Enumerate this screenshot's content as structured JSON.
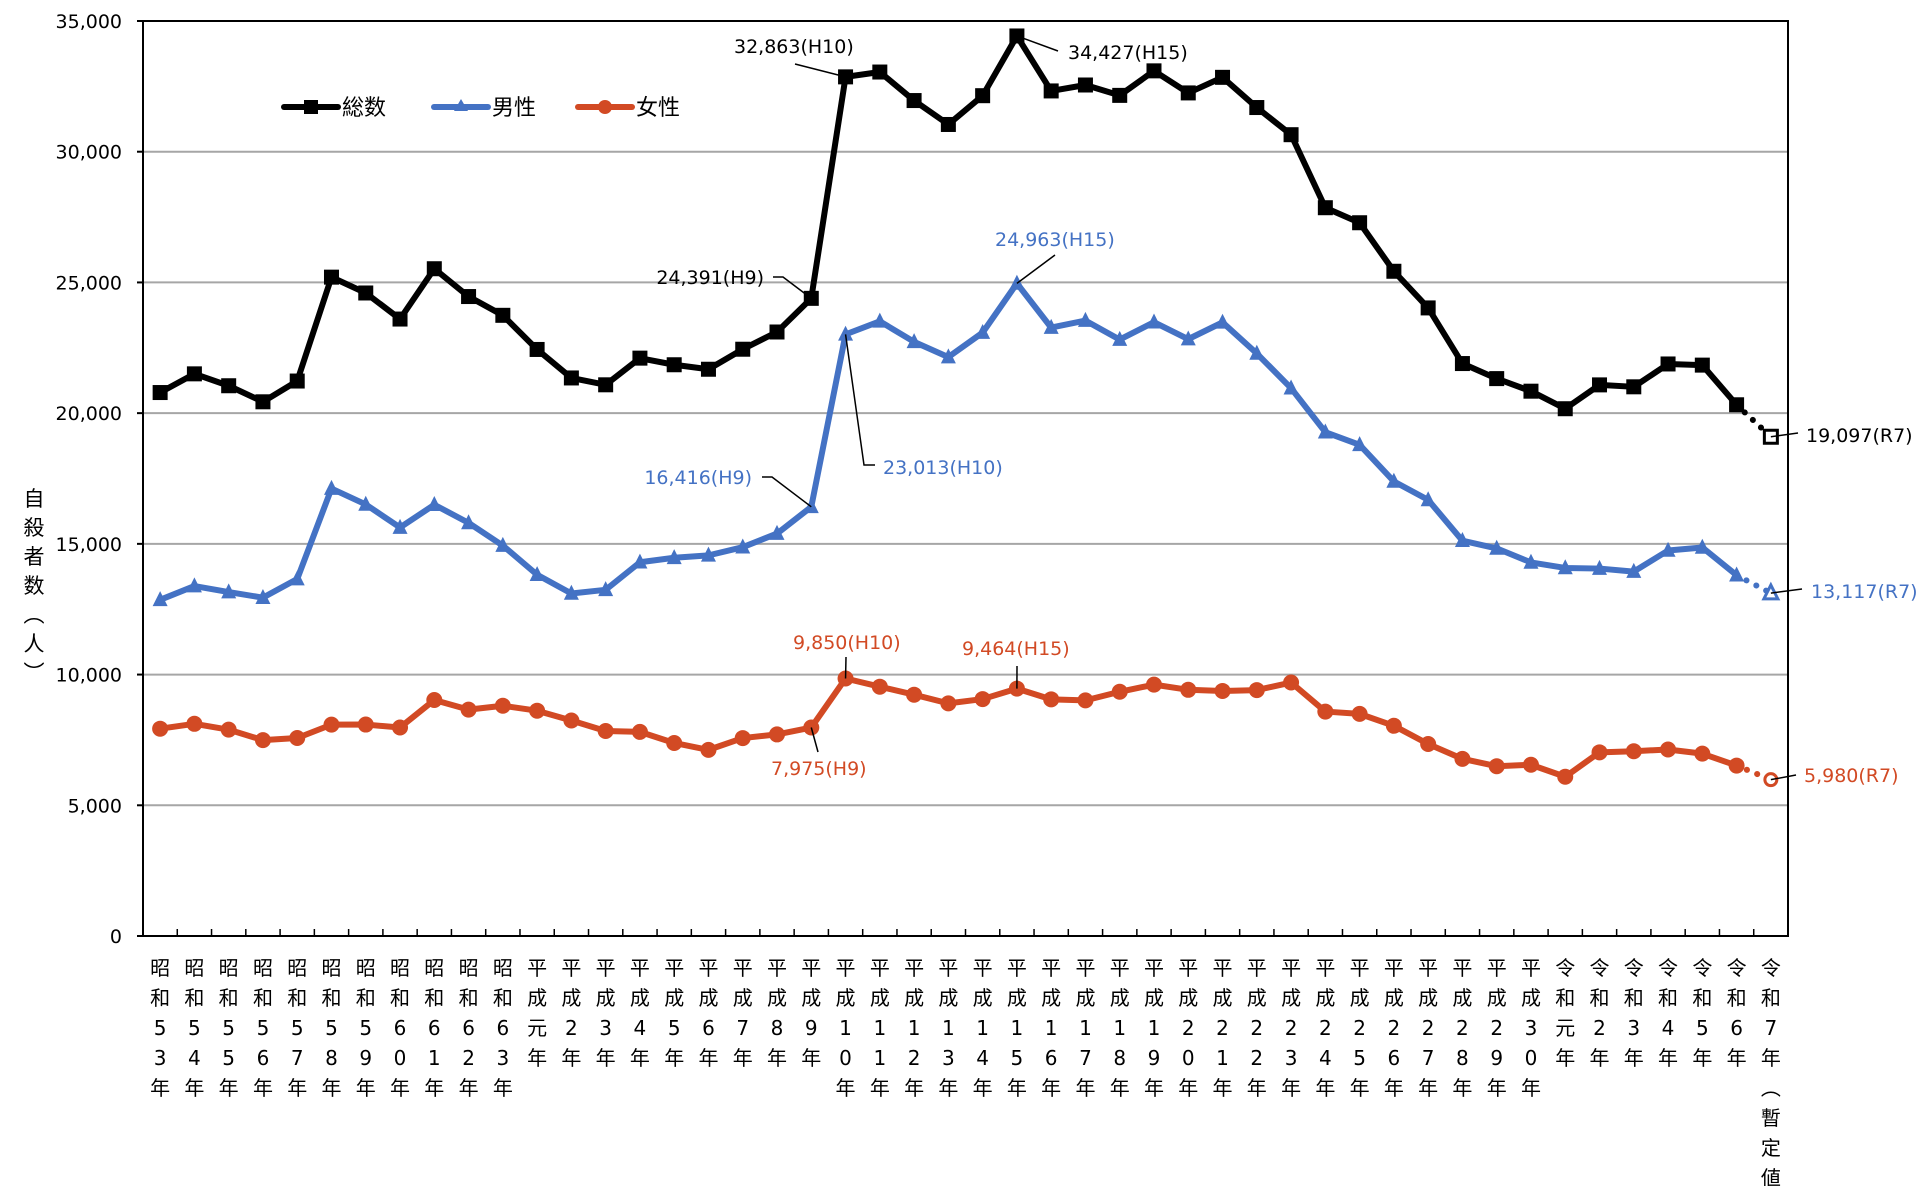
{
  "chart_data": {
    "type": "line",
    "title": "",
    "ylabel": "自殺者数（人）",
    "xlabel": "",
    "ylim": [
      0,
      35000
    ],
    "yticks": [
      0,
      5000,
      10000,
      15000,
      20000,
      25000,
      30000,
      35000
    ],
    "ytick_labels": [
      "0",
      "5,000",
      "10,000",
      "15,000",
      "20,000",
      "25,000",
      "30,000",
      "35,000"
    ],
    "grid": "horizontal",
    "legend_position": "top-left",
    "categories": [
      "昭和53年",
      "昭和54年",
      "昭和55年",
      "昭和56年",
      "昭和57年",
      "昭和58年",
      "昭和59年",
      "昭和60年",
      "昭和61年",
      "昭和62年",
      "昭和63年",
      "平成元年",
      "平成2年",
      "平成3年",
      "平成4年",
      "平成5年",
      "平成6年",
      "平成7年",
      "平成8年",
      "平成9年",
      "平成10年",
      "平成11年",
      "平成12年",
      "平成13年",
      "平成14年",
      "平成15年",
      "平成16年",
      "平成17年",
      "平成18年",
      "平成19年",
      "平成20年",
      "平成21年",
      "平成22年",
      "平成23年",
      "平成24年",
      "平成25年",
      "平成26年",
      "平成27年",
      "平成28年",
      "平成29年",
      "平成30年",
      "令和元年",
      "令和2年",
      "令和3年",
      "令和4年",
      "令和5年",
      "令和6年",
      "令和7年（暫定値）"
    ],
    "series": [
      {
        "name": "総数",
        "color": "#000000",
        "marker": "square",
        "values": [
          20788,
          21503,
          21048,
          20434,
          21228,
          25202,
          24596,
          23599,
          25524,
          24460,
          23742,
          22436,
          21346,
          21084,
          22104,
          21851,
          21679,
          22445,
          23104,
          24391,
          32863,
          33048,
          31957,
          31042,
          32143,
          34427,
          32325,
          32552,
          32155,
          33093,
          32249,
          32845,
          31690,
          30651,
          27858,
          27283,
          25427,
          24025,
          21897,
          21321,
          20840,
          20169,
          21081,
          21007,
          21881,
          21837,
          20320,
          19097
        ]
      },
      {
        "name": "男性",
        "color": "#4472C4",
        "marker": "triangle",
        "values": [
          12859,
          13386,
          13155,
          12942,
          13654,
          17116,
          16508,
          15624,
          16497,
          15802,
          14934,
          13818,
          13102,
          13242,
          14296,
          14468,
          14560,
          14874,
          15393,
          16416,
          23013,
          23512,
          22727,
          22144,
          23080,
          24963,
          23272,
          23540,
          22813,
          23478,
          22831,
          23472,
          22283,
          20955,
          19273,
          18787,
          17386,
          16681,
          15121,
          14826,
          14290,
          14078,
          14055,
          13939,
          14746,
          14862,
          13801,
          13117
        ]
      },
      {
        "name": "女性",
        "color": "#D24A24",
        "marker": "circle",
        "values": [
          7929,
          8117,
          7893,
          7492,
          7574,
          8086,
          8088,
          7975,
          9027,
          8658,
          8808,
          8618,
          8244,
          7842,
          7808,
          7383,
          7119,
          7571,
          7711,
          7975,
          9850,
          9536,
          9230,
          8898,
          9063,
          9464,
          9053,
          9012,
          9342,
          9615,
          9418,
          9373,
          9407,
          9696,
          8585,
          8496,
          8041,
          7344,
          6776,
          6495,
          6550,
          6091,
          7026,
          7068,
          7135,
          6975,
          6519,
          5980
        ]
      }
    ],
    "provisional_last_point": true,
    "annotations": [
      {
        "series": "総数",
        "category": "平成10年",
        "text": "32,863(H10)"
      },
      {
        "series": "総数",
        "category": "平成15年",
        "text": "34,427(H15)"
      },
      {
        "series": "総数",
        "category": "平成9年",
        "text": "24,391(H9)"
      },
      {
        "series": "総数",
        "category": "令和7年（暫定値）",
        "text": "19,097(R7)"
      },
      {
        "series": "男性",
        "category": "平成15年",
        "text": "24,963(H15)"
      },
      {
        "series": "男性",
        "category": "平成9年",
        "text": "16,416(H9)"
      },
      {
        "series": "男性",
        "category": "平成10年",
        "text": "23,013(H10)"
      },
      {
        "series": "男性",
        "category": "令和7年（暫定値）",
        "text": "13,117(R7)"
      },
      {
        "series": "女性",
        "category": "平成10年",
        "text": "9,850(H10)"
      },
      {
        "series": "女性",
        "category": "平成15年",
        "text": "9,464(H15)"
      },
      {
        "series": "女性",
        "category": "平成9年",
        "text": "7,975(H9)"
      },
      {
        "series": "女性",
        "category": "令和7年（暫定値）",
        "text": "5,980(R7)"
      }
    ]
  }
}
